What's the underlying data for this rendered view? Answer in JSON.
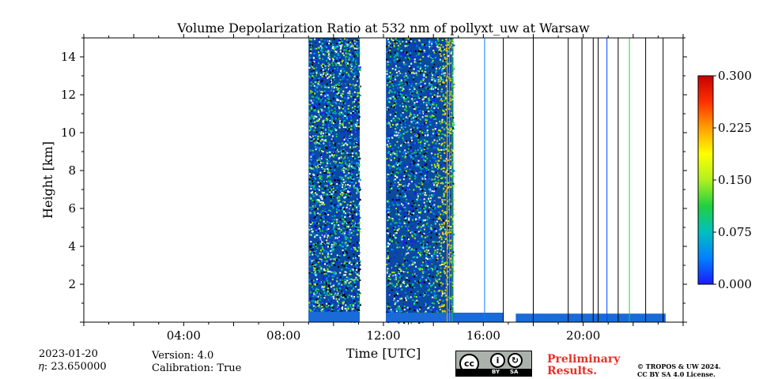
{
  "chart_data": {
    "type": "heatmap",
    "title": "Volume Depolarization Ratio at 532 nm of pollyxt_uw at Warsaw",
    "xlabel": "Time [UTC]",
    "ylabel": "Height [km]",
    "xlim_hours": [
      0,
      24
    ],
    "ylim_km": [
      0,
      15
    ],
    "x_ticks": [
      {
        "hour": 4,
        "label": "04:00"
      },
      {
        "hour": 8,
        "label": "08:00"
      },
      {
        "hour": 12,
        "label": "12:00"
      },
      {
        "hour": 16,
        "label": "16:00"
      },
      {
        "hour": 20,
        "label": "20:00"
      }
    ],
    "y_ticks": [
      {
        "value": 2,
        "label": "2"
      },
      {
        "value": 4,
        "label": "4"
      },
      {
        "value": 6,
        "label": "6"
      },
      {
        "value": 8,
        "label": "8"
      },
      {
        "value": 10,
        "label": "10"
      },
      {
        "value": 12,
        "label": "12"
      },
      {
        "value": 14,
        "label": "14"
      }
    ],
    "colorbar": {
      "min": 0.0,
      "max": 0.3,
      "ticks": [
        {
          "value": 0.0,
          "label": "0.000"
        },
        {
          "value": 0.075,
          "label": "0.075"
        },
        {
          "value": 0.15,
          "label": "0.150"
        },
        {
          "value": 0.225,
          "label": "0.225"
        },
        {
          "value": 0.3,
          "label": "0.300"
        }
      ],
      "colors": [
        "#1a1aff",
        "#0080ff",
        "#00c0c0",
        "#20d040",
        "#b0f020",
        "#ffff00",
        "#ffa000",
        "#ff3000",
        "#c80000"
      ]
    },
    "noise_blocks": [
      {
        "start_hour": 9.0,
        "end_hour": 11.05
      },
      {
        "start_hour": 12.1,
        "end_hour": 14.8
      }
    ],
    "near_surface_layer": [
      {
        "start_hour": 9.0,
        "end_hour": 11.05,
        "top_km": 0.55
      },
      {
        "start_hour": 12.1,
        "end_hour": 16.8,
        "top_km": 0.5
      },
      {
        "start_hour": 17.3,
        "end_hour": 23.3,
        "top_km": 0.45
      }
    ],
    "vertical_profiles": [
      {
        "hour": 14.55,
        "color": "#ffa000"
      },
      {
        "hour": 14.65,
        "color": "#ff8000"
      },
      {
        "hour": 14.75,
        "color": "#20d040"
      },
      {
        "hour": 16.05,
        "color": "#0080ff"
      },
      {
        "hour": 16.8,
        "color": "#000000"
      },
      {
        "hour": 18.0,
        "color": "#000000"
      },
      {
        "hour": 19.4,
        "color": "#000000"
      },
      {
        "hour": 19.95,
        "color": "#000000"
      },
      {
        "hour": 20.4,
        "color": "#000000"
      },
      {
        "hour": 20.6,
        "color": "#000000"
      },
      {
        "hour": 20.95,
        "color": "#0040ff"
      },
      {
        "hour": 21.4,
        "color": "#000000"
      },
      {
        "hour": 21.85,
        "color": "#20d040"
      },
      {
        "hour": 22.5,
        "color": "#000000"
      },
      {
        "hour": 23.2,
        "color": "#000000"
      }
    ]
  },
  "footer": {
    "date": "2023-01-20",
    "eta": "𝜂: 23.650000",
    "version": "Version: 4.0",
    "calibration": "Calibration: True",
    "preliminary_line1": "Preliminary",
    "preliminary_line2": "Results.",
    "copyright_line1": "© TROPOS & UW 2024.",
    "copyright_line2": "CC BY SA 4.0 License.",
    "license_badge": {
      "cc": "cc",
      "by": "BY",
      "sa": "SA"
    }
  }
}
